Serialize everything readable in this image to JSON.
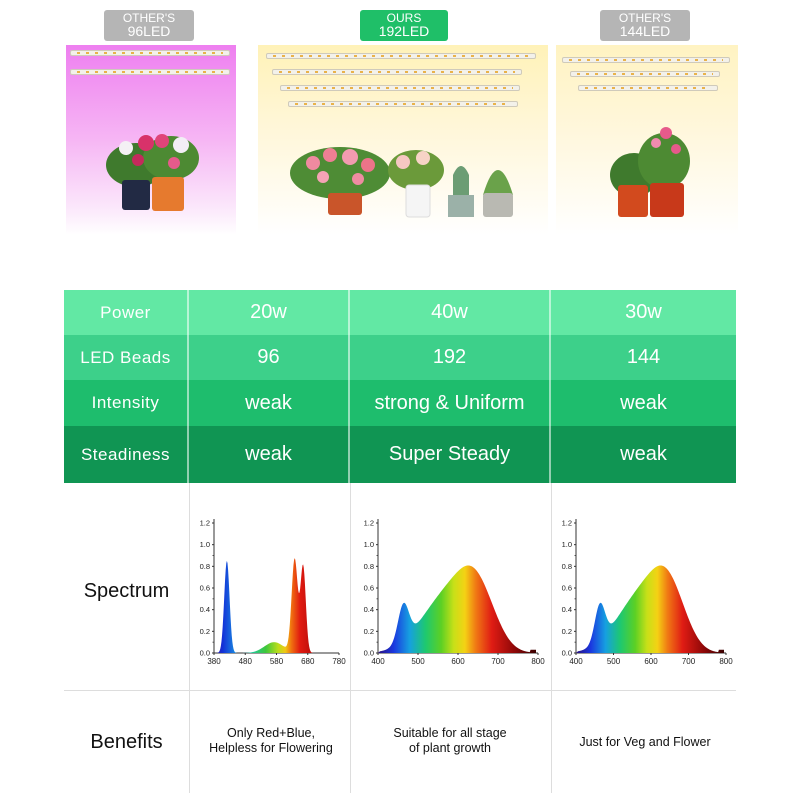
{
  "header": {
    "badges": [
      {
        "top": "OTHER'S",
        "bottom": "96LED",
        "color": "#b5b5b5"
      },
      {
        "top": "OURS",
        "bottom": "192LED",
        "color": "#1fbf68"
      },
      {
        "top": "OTHER'S",
        "bottom": "144LED",
        "color": "#b5b5b5"
      }
    ]
  },
  "table": {
    "rows": [
      {
        "label": "Power",
        "values": [
          "20w",
          "40w",
          "30w"
        ],
        "color": "#62e8a4"
      },
      {
        "label": "LED Beads",
        "values": [
          "96",
          "192",
          "144"
        ],
        "color": "#3dd08a"
      },
      {
        "label": "Intensity",
        "values": [
          "weak",
          "strong & Uniform",
          "weak"
        ],
        "color": "#1ebd6d"
      },
      {
        "label": "Steadiness",
        "values": [
          "weak",
          "Super Steady",
          "weak"
        ],
        "color": "#109553"
      }
    ]
  },
  "spectrum": {
    "label": "Spectrum",
    "y_ticks": [
      "1.2",
      "1.0",
      "0.8",
      "0.6",
      "0.4",
      "0.2",
      "0.0"
    ],
    "charts": [
      {
        "x_ticks": [
          "380",
          "480",
          "580",
          "680",
          "780"
        ]
      },
      {
        "x_ticks": [
          "400",
          "500",
          "600",
          "700",
          "800"
        ]
      },
      {
        "x_ticks": [
          "400",
          "500",
          "600",
          "700",
          "800"
        ]
      }
    ]
  },
  "benefits": {
    "label": "Benefits",
    "items": [
      {
        "line1": "Only Red+Blue,",
        "line2": "Helpless for Flowering"
      },
      {
        "line1": "Suitable for all stage",
        "line2": "of plant growth"
      },
      {
        "line1": "Just for Veg and Flower",
        "line2": ""
      }
    ]
  }
}
